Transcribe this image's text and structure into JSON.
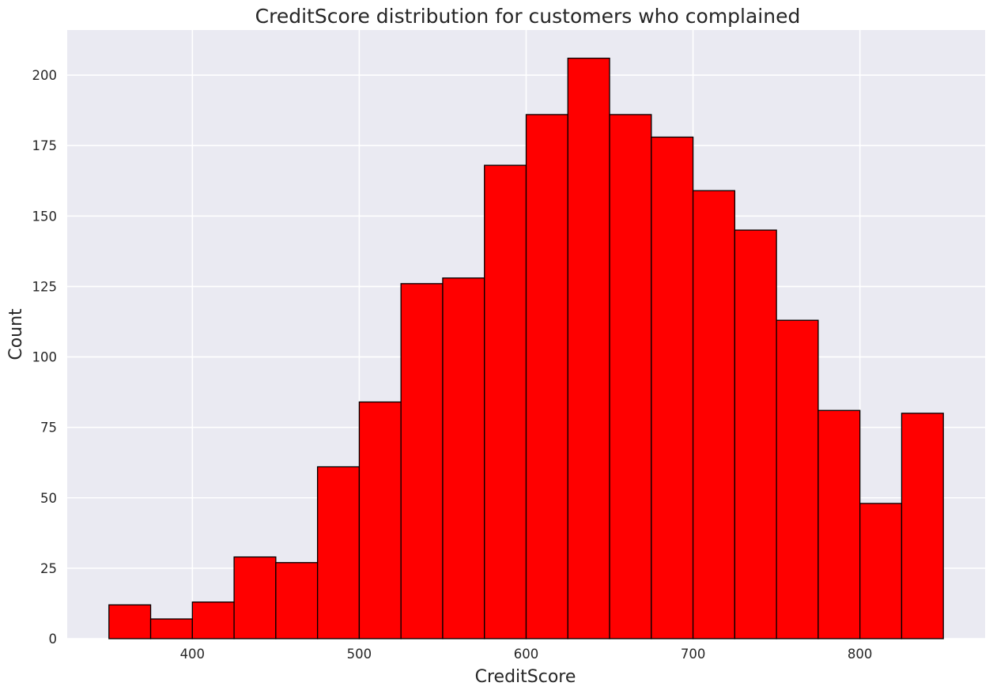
{
  "chart_data": {
    "type": "bar",
    "title": "CreditScore distribution for customers who complained",
    "xlabel": "CreditScore",
    "ylabel": "Count",
    "bin_edges": [
      350,
      375,
      400,
      425,
      450,
      475,
      500,
      525,
      550,
      575,
      600,
      625,
      650,
      675,
      700,
      725,
      750,
      775,
      800,
      825,
      850
    ],
    "values": [
      12,
      7,
      13,
      29,
      27,
      61,
      84,
      126,
      128,
      168,
      186,
      206,
      186,
      178,
      159,
      145,
      113,
      81,
      48,
      80
    ],
    "xlim": [
      325,
      875
    ],
    "ylim": [
      0,
      216
    ],
    "xticks": [
      400,
      500,
      600,
      700,
      800
    ],
    "yticks": [
      0,
      25,
      50,
      75,
      100,
      125,
      150,
      175,
      200
    ],
    "grid": true,
    "bar_color": "#ff0000",
    "edge_color": "#000000",
    "background_color": "#eaeaf2",
    "grid_color": "#ffffff"
  }
}
